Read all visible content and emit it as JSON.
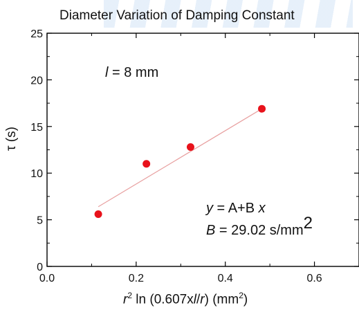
{
  "chart_data": {
    "type": "scatter",
    "title": "Diameter Variation of Damping Constant",
    "xlabel": {
      "pre": "r",
      "sup": "2",
      "mid": " ln (0.607x",
      "l": "l",
      "slash": "/",
      "r": "r",
      "close": ")  (mm",
      "unit_sup": "2",
      "end": ")"
    },
    "ylabel": "τ (s)",
    "xlim": [
      0,
      0.7
    ],
    "ylim": [
      0,
      25
    ],
    "x_ticks": [
      "0.0",
      "0.2",
      "0.4",
      "0.6"
    ],
    "y_ticks": [
      "0",
      "5",
      "10",
      "15",
      "20",
      "25"
    ],
    "series": [
      {
        "marker_color": "#e8121b",
        "points": [
          {
            "x": 0.115,
            "y": 5.6
          },
          {
            "x": 0.223,
            "y": 11.0
          },
          {
            "x": 0.322,
            "y": 12.8
          },
          {
            "x": 0.482,
            "y": 16.9
          }
        ]
      }
    ],
    "fit_line": {
      "color": "#e8a0a0",
      "x": [
        0.115,
        0.482
      ],
      "y": [
        6.4,
        16.9
      ]
    },
    "annotations": {
      "length": {
        "symbol": "l",
        "text": " = 8 mm"
      },
      "fit": {
        "y": "y",
        "eq": " = A+B ",
        "x": "x"
      },
      "slope": {
        "symbol": "B",
        "text": " = 29.02 s/mm",
        "sup": "2"
      }
    }
  }
}
